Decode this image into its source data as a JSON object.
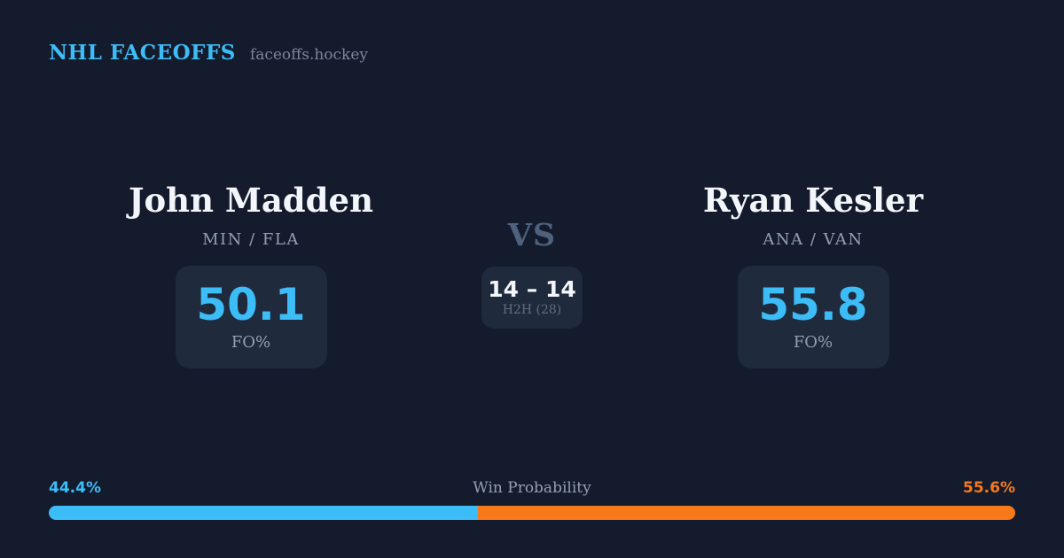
{
  "header": {
    "title": "NHL FACEOFFS",
    "domain": "faceoffs.hockey"
  },
  "matchup": {
    "player_left": {
      "name": "John Madden",
      "teams": "MIN / FLA",
      "fo_value": "50.1",
      "fo_label": "FO%"
    },
    "vs_label": "VS",
    "h2h": {
      "score": "14 – 14",
      "label": "H2H (28)"
    },
    "player_right": {
      "name": "Ryan Kesler",
      "teams": "ANA / VAN",
      "fo_value": "55.8",
      "fo_label": "FO%"
    }
  },
  "win_probability": {
    "label": "Win Probability",
    "left_pct": "44.4%",
    "right_pct": "55.6%",
    "left_value": 44.4,
    "right_value": 55.6
  },
  "colors": {
    "background": "#141b2d",
    "card": "#1f2a3c",
    "accent_blue": "#3dbdf8",
    "accent_orange": "#f8791a",
    "text_primary": "#f2f5f9",
    "text_muted": "#93a0b4",
    "text_dim": "#5f6d85",
    "vs_color": "#4f617c",
    "domain_color": "#7b8699"
  }
}
